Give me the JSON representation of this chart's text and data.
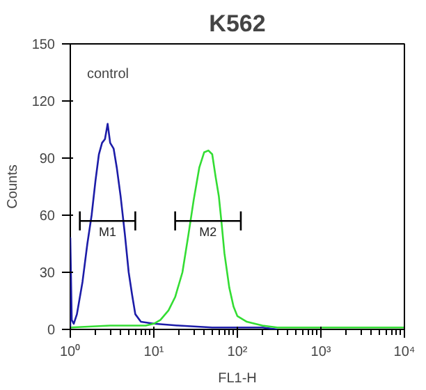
{
  "chart_data": {
    "type": "line",
    "title": "K562",
    "xlabel": "FL1-H",
    "ylabel": "Counts",
    "log": "x",
    "xlim": [
      1,
      10000
    ],
    "xticks": [
      {
        "value": 1,
        "label": "10⁰"
      },
      {
        "value": 10,
        "label": "10¹"
      },
      {
        "value": 100,
        "label": "10²"
      },
      {
        "value": 1000,
        "label": "10³"
      },
      {
        "value": 10000,
        "label": "10⁴"
      }
    ],
    "ylim": [
      0,
      150
    ],
    "yticks": [
      0,
      30,
      60,
      90,
      120,
      150
    ],
    "grid": false,
    "series": [
      {
        "color": "#1c1ca8",
        "x": [
          1.0,
          1.0,
          1.04,
          1.1,
          1.2,
          1.4,
          1.6,
          1.8,
          2.0,
          2.2,
          2.4,
          2.6,
          2.8,
          3.0,
          3.3,
          3.6,
          4.0,
          4.5,
          5.0,
          5.5,
          6.0,
          7,
          10,
          20,
          50,
          100,
          200,
          300
        ],
        "values": [
          0,
          48,
          5,
          3,
          8,
          25,
          45,
          60,
          78,
          92,
          98,
          100,
          108,
          98,
          95,
          85,
          70,
          50,
          30,
          18,
          8,
          4,
          3,
          2,
          1,
          1,
          1,
          0
        ]
      },
      {
        "color": "#33dd33",
        "x": [
          1,
          3,
          8,
          10,
          12,
          15,
          18,
          22,
          26,
          30,
          35,
          40,
          45,
          50,
          55,
          60,
          65,
          70,
          80,
          90,
          100,
          130,
          200,
          300,
          1000,
          10000
        ],
        "values": [
          1,
          2,
          2,
          3,
          5,
          10,
          17,
          30,
          50,
          68,
          85,
          93,
          94,
          92,
          80,
          70,
          55,
          40,
          22,
          12,
          7,
          4,
          2,
          1,
          1,
          1
        ]
      },
      {
        "name": "M1",
        "color": "#000000",
        "x": [
          1.3,
          6
        ],
        "values": [
          57,
          57
        ],
        "errors": [
          5,
          5
        ]
      },
      {
        "name": "M2",
        "color": "#000000",
        "x": [
          18,
          110
        ],
        "values": [
          57,
          57
        ],
        "errors": [
          5,
          5
        ]
      }
    ],
    "annotations": [
      "control"
    ]
  }
}
